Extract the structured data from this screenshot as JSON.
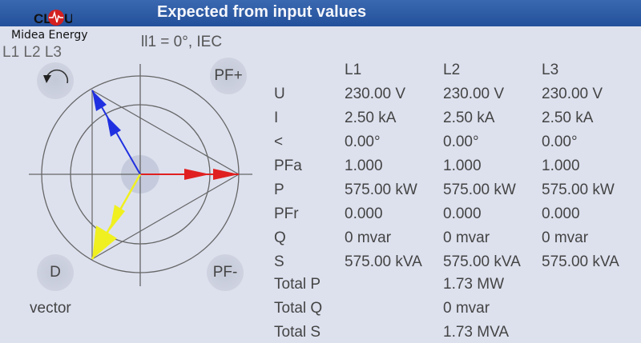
{
  "header": {
    "title": "Expected from input values"
  },
  "logo": {
    "text": "Midea Energy",
    "mark": "CLOU"
  },
  "left": {
    "phase_label": "L1 L2 L3",
    "mode": "ll1 = 0°, IEC",
    "vector_label": "vector",
    "buttons": {
      "rotate": "rotate-icon",
      "pf_plus": "PF+",
      "d": "D",
      "pf_minus": "PF-"
    }
  },
  "colors": {
    "L1": "#e02020",
    "L2": "#f0f020",
    "L3": "#2030e0",
    "header": "#2c5aa0"
  },
  "table": {
    "headers": [
      "L1",
      "L2",
      "L3"
    ],
    "rows": [
      {
        "label": "U",
        "values": [
          "230.00 V",
          "230.00 V",
          "230.00 V"
        ]
      },
      {
        "label": "I",
        "values": [
          "2.50 kA",
          "2.50 kA",
          "2.50 kA"
        ]
      },
      {
        "label": "<",
        "values": [
          "0.00°",
          "0.00°",
          "0.00°"
        ]
      },
      {
        "label": "PFa",
        "values": [
          "1.000",
          "1.000",
          "1.000"
        ]
      },
      {
        "label": "P",
        "values": [
          "575.00 kW",
          "575.00 kW",
          "575.00 kW"
        ]
      },
      {
        "label": "PFr",
        "values": [
          "0.000",
          "0.000",
          "0.000"
        ]
      },
      {
        "label": "Q",
        "values": [
          "0 mvar",
          "0 mvar",
          "0 mvar"
        ]
      },
      {
        "label": "S",
        "values": [
          "575.00 kVA",
          "575.00 kVA",
          "575.00 kVA"
        ]
      }
    ],
    "totals": [
      {
        "label": "Total P",
        "value": "1.73 MW"
      },
      {
        "label": "Total Q",
        "value": "0 mvar"
      },
      {
        "label": "Total S",
        "value": "1.73 MVA"
      }
    ]
  }
}
